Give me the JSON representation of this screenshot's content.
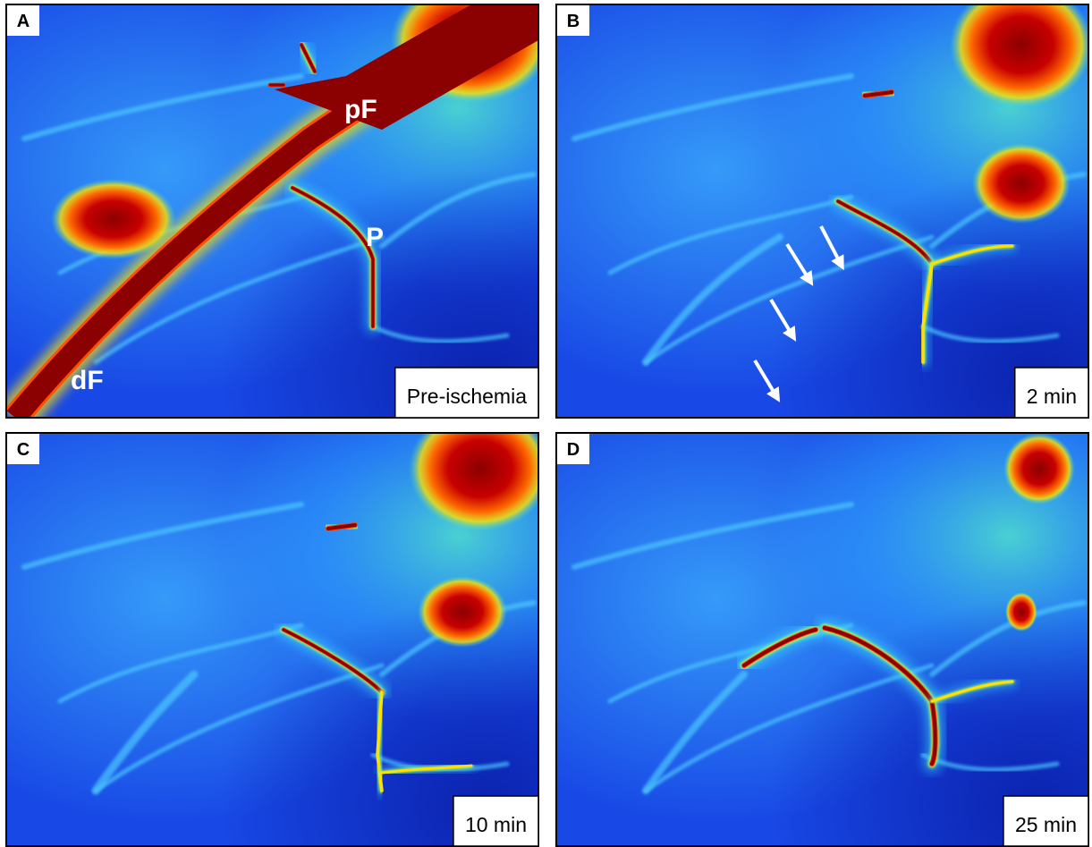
{
  "panels": [
    {
      "letter": "A",
      "label": "Pre-ischemia",
      "annotations": [
        "pF",
        "P",
        "dF"
      ]
    },
    {
      "letter": "B",
      "label": "2 min"
    },
    {
      "letter": "C",
      "label": "10 min"
    },
    {
      "letter": "D",
      "label": "25 min"
    }
  ]
}
